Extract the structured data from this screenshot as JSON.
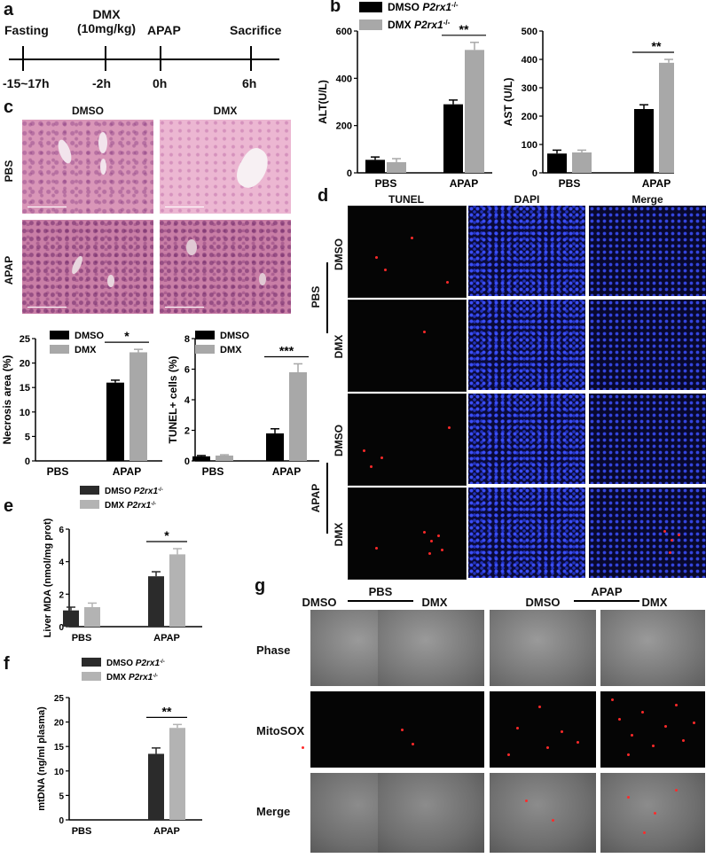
{
  "panels": {
    "a": "a",
    "b": "b",
    "c": "c",
    "d": "d",
    "e": "e",
    "f": "f",
    "g": "g"
  },
  "timeline": {
    "events": [
      {
        "label": "Fasting",
        "time": "-15~17h"
      },
      {
        "label": "DMX\n(10mg/kg)",
        "time": "-2h"
      },
      {
        "label": "APAP",
        "time": "0h"
      },
      {
        "label": "Sacrifice",
        "time": "6h"
      }
    ]
  },
  "panel_c": {
    "col_headers": [
      "DMSO",
      "DMX"
    ],
    "row_labels": [
      "PBS",
      "APAP"
    ]
  },
  "panel_d": {
    "col_headers": [
      "TUNEL",
      "DAPI",
      "Merge"
    ],
    "group_labels": [
      "PBS",
      "APAP"
    ],
    "row_labels": [
      "DMSO",
      "DMX",
      "DMSO",
      "DMX"
    ]
  },
  "panel_g": {
    "group_labels": [
      "PBS",
      "APAP"
    ],
    "col_headers": [
      "DMSO",
      "DMX",
      "DMSO",
      "DMX"
    ],
    "row_labels": [
      "Phase",
      "MitoSOX",
      "Merge"
    ]
  },
  "colors": {
    "black": "#000000",
    "grey": "#a8a8a8",
    "dark": "#2b2b2b",
    "light_grey": "#b3b3b3"
  },
  "chart_data": [
    {
      "id": "alt",
      "type": "bar",
      "panel": "b",
      "categories": [
        "PBS",
        "APAP"
      ],
      "ylabel": "ALT(U/L)",
      "ylim": [
        0,
        600
      ],
      "yticks": [
        0,
        200,
        400,
        600
      ],
      "series": [
        {
          "name": "DMSO P2rx1-/-",
          "values": [
            55,
            290
          ],
          "errors": [
            12,
            18
          ]
        },
        {
          "name": "DMX P2rx1-/-",
          "values": [
            45,
            520
          ],
          "errors": [
            15,
            32
          ]
        }
      ],
      "significance": [
        {
          "category": "APAP",
          "label": "**"
        }
      ],
      "legend": "top"
    },
    {
      "id": "ast",
      "type": "bar",
      "panel": "b",
      "categories": [
        "PBS",
        "APAP"
      ],
      "ylabel": "AST (U/L)",
      "ylim": [
        0,
        500
      ],
      "yticks": [
        0,
        100,
        200,
        300,
        400,
        500
      ],
      "series": [
        {
          "name": "DMSO P2rx1-/-",
          "values": [
            68,
            225
          ],
          "errors": [
            12,
            15
          ]
        },
        {
          "name": "DMX P2rx1-/-",
          "values": [
            72,
            388
          ],
          "errors": [
            8,
            12
          ]
        }
      ],
      "significance": [
        {
          "category": "APAP",
          "label": "**"
        }
      ]
    },
    {
      "id": "necrosis",
      "type": "bar",
      "panel": "c",
      "categories": [
        "PBS",
        "APAP"
      ],
      "ylabel": "Necrosis area (%)",
      "ylim": [
        0,
        25
      ],
      "yticks": [
        0,
        5,
        10,
        15,
        20,
        25
      ],
      "series": [
        {
          "name": "DMSO",
          "values": [
            0,
            16
          ],
          "errors": [
            0,
            0.5
          ]
        },
        {
          "name": "DMX",
          "values": [
            0,
            22.2
          ],
          "errors": [
            0,
            0.6
          ]
        }
      ],
      "significance": [
        {
          "category": "APAP",
          "label": "*"
        }
      ],
      "legend": "top-left"
    },
    {
      "id": "tunel",
      "type": "bar",
      "panel": "c",
      "categories": [
        "PBS",
        "APAP"
      ],
      "ylabel": "TUNEL+ cells (%)",
      "ylim": [
        0,
        8
      ],
      "yticks": [
        0,
        2,
        4,
        6,
        8
      ],
      "series": [
        {
          "name": "DMSO",
          "values": [
            0.3,
            1.8
          ],
          "errors": [
            0.05,
            0.3
          ]
        },
        {
          "name": "DMX",
          "values": [
            0.35,
            5.8
          ],
          "errors": [
            0.05,
            0.55
          ]
        }
      ],
      "significance": [
        {
          "category": "APAP",
          "label": "***"
        }
      ],
      "legend": "top-left"
    },
    {
      "id": "mda",
      "type": "bar",
      "panel": "e",
      "categories": [
        "PBS",
        "APAP"
      ],
      "ylabel": "Liver MDA (nmol/mg prot)",
      "ylim": [
        0,
        6
      ],
      "yticks": [
        0,
        2,
        4,
        6
      ],
      "series": [
        {
          "name": "DMSO P2rx1-/-",
          "values": [
            1.0,
            3.1
          ],
          "errors": [
            0.2,
            0.28
          ]
        },
        {
          "name": "DMX P2rx1-/-",
          "values": [
            1.2,
            4.45
          ],
          "errors": [
            0.25,
            0.35
          ]
        }
      ],
      "significance": [
        {
          "category": "APAP",
          "label": "*"
        }
      ],
      "legend": "top-left"
    },
    {
      "id": "mtdna",
      "type": "bar",
      "panel": "f",
      "categories": [
        "PBS",
        "APAP"
      ],
      "ylabel": "mtDNA (ng/ml plasma)",
      "ylim": [
        0,
        25
      ],
      "yticks": [
        0,
        5,
        10,
        15,
        20,
        25
      ],
      "series": [
        {
          "name": "DMSO P2rx1-/-",
          "values": [
            0,
            13.5
          ],
          "errors": [
            0,
            1.2
          ]
        },
        {
          "name": "DMX P2rx1-/-",
          "values": [
            0,
            18.8
          ],
          "errors": [
            0,
            0.7
          ]
        }
      ],
      "significance": [
        {
          "category": "APAP",
          "label": "**"
        }
      ],
      "legend": "top-left"
    }
  ]
}
